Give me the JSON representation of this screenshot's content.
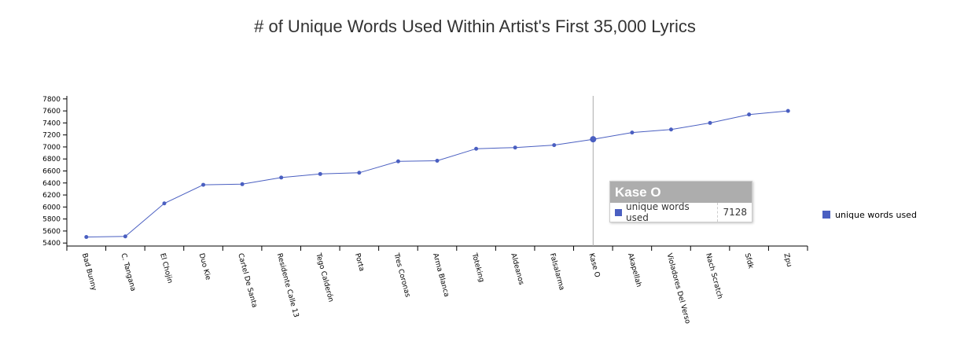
{
  "chart_data": {
    "type": "line",
    "title": "# of Unique Words Used Within Artist's First 35,000 Lyrics",
    "categories": [
      "Bad Bunny",
      "C. Tangana",
      "El Chojin",
      "Duo Kie",
      "Cartel De Santa",
      "Residente Calle 13",
      "Tego Calderón",
      "Porta",
      "Tres Coronas",
      "Arma Blanca",
      "Toteking",
      "Aldeanos",
      "Falsalarma",
      "Kase O",
      "Akapellah",
      "Violadores Del Verso",
      "Nach Scratch",
      "Sfdk",
      "Zpu"
    ],
    "series": [
      {
        "name": "unique words used",
        "values": [
          5500,
          5510,
          6060,
          6370,
          6380,
          6490,
          6550,
          6570,
          6760,
          6770,
          6970,
          6990,
          7030,
          7128,
          7240,
          7290,
          7400,
          7540,
          7600
        ]
      }
    ],
    "ylim": [
      5350,
      7850
    ],
    "yticks": [
      5400,
      5600,
      5800,
      6000,
      6200,
      6400,
      6600,
      6800,
      7000,
      7200,
      7400,
      7600,
      7800
    ],
    "legend_position": "right",
    "color": "#4a5fc1",
    "grid": false,
    "highlight_index": 13
  },
  "tooltip": {
    "title": "Kase O",
    "series_name": "unique words used",
    "value": "7128"
  }
}
